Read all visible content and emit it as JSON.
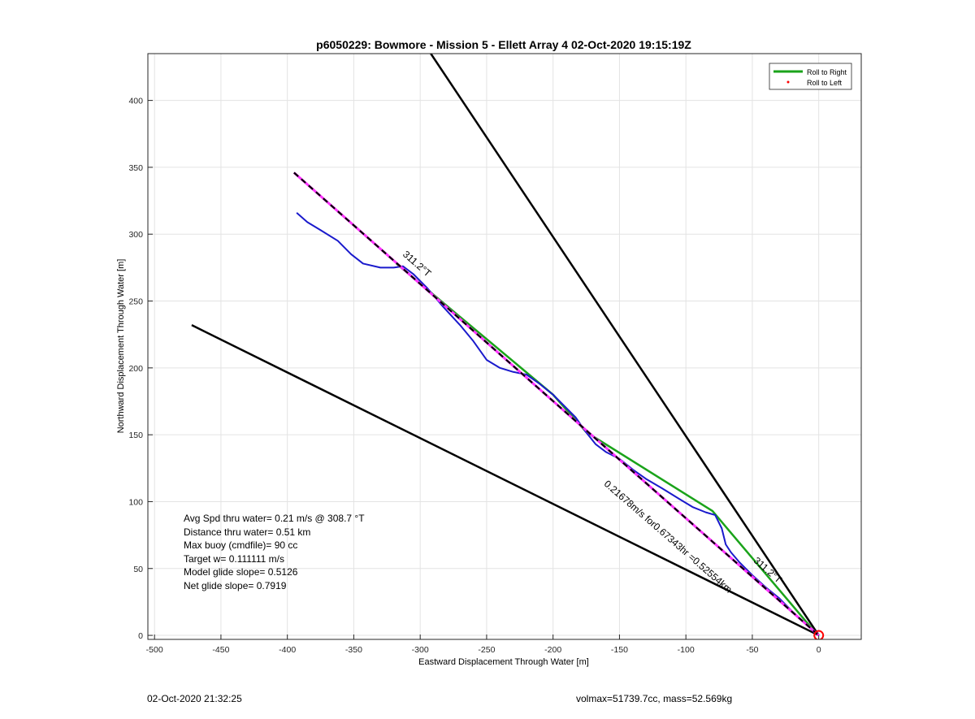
{
  "chart_data": {
    "type": "line",
    "title": "p6050229: Bowmore - Mission 5 - Ellett Array 4 02-Oct-2020 19:15:19Z",
    "xlabel": "Eastward Displacement Through Water [m]",
    "ylabel": "Northward Displacement Through Water [m]",
    "xlim": [
      -505,
      32
    ],
    "ylim": [
      -3,
      435
    ],
    "xticks": [
      -500,
      -450,
      -400,
      -350,
      -300,
      -250,
      -200,
      -150,
      -100,
      -50,
      0
    ],
    "yticks": [
      0,
      50,
      100,
      150,
      200,
      250,
      300,
      350,
      400
    ],
    "grid": true,
    "legend": {
      "placement": "top-right",
      "entries": [
        {
          "label": "Roll to Right",
          "color": "#1aa31a",
          "style": "line"
        },
        {
          "label": "Roll to Left",
          "color": "#ff0000",
          "style": "dot"
        }
      ]
    },
    "series": [
      {
        "role": "wedge-upper",
        "color": "#000000",
        "x": [
          0,
          -292
        ],
        "y": [
          0,
          435
        ]
      },
      {
        "role": "wedge-lower",
        "color": "#000000",
        "x": [
          0,
          -472
        ],
        "y": [
          0,
          232
        ]
      },
      {
        "role": "roll-right",
        "color": "#1aa31a",
        "x": [
          -318,
          -200,
          -175,
          -80,
          -5
        ],
        "y": [
          278,
          180,
          152,
          93,
          5
        ]
      },
      {
        "role": "track",
        "color": "#1a1acc",
        "x": [
          -393,
          -385,
          -375,
          -362,
          -352,
          -343,
          -330,
          -320,
          -313,
          -305,
          -295,
          -283,
          -270,
          -260,
          -250,
          -240,
          -230,
          -220,
          -210,
          -200,
          -190,
          -183,
          -176,
          -168,
          -160,
          -150,
          -140,
          -130,
          -118,
          -105,
          -95,
          -85,
          -78,
          -73,
          -70,
          -66,
          -60,
          -50,
          -40,
          -30,
          -20,
          -10,
          -3
        ],
        "y": [
          316,
          309,
          303,
          295,
          285,
          278,
          275,
          275,
          276,
          270,
          260,
          246,
          232,
          220,
          206,
          200,
          197,
          195,
          188,
          180,
          170,
          163,
          153,
          143,
          137,
          132,
          124,
          117,
          110,
          102,
          96,
          92,
          90,
          80,
          68,
          62,
          55,
          45,
          36,
          28,
          18,
          9,
          2
        ]
      },
      {
        "role": "heading-line",
        "color": "#000000",
        "dash": "pink-black",
        "pinkColor": "#ff33ff",
        "x": [
          -395,
          0
        ],
        "y": [
          346,
          0
        ]
      }
    ],
    "annotations": [
      {
        "text": "311.2°T",
        "x": -304,
        "y": 276,
        "angle": 41
      },
      {
        "text": "311.2°T",
        "x": -40,
        "y": 47,
        "angle": 41
      },
      {
        "text": "0.21678m/s for0.67343hr =0.52554km",
        "x": -115,
        "y": 72,
        "angle": 41
      }
    ],
    "origin_marker": {
      "x": 0,
      "y": 0,
      "color": "#ff0000"
    },
    "stats": [
      "Avg Spd thru water=  0.21 m/s @ 308.7 °T",
      "Distance thru water=  0.51 km",
      "Max buoy (cmdfile)= 90 cc",
      "Target w= 0.111111 m/s",
      "Model glide slope= 0.5126",
      "Net glide slope= 0.7919"
    ]
  },
  "footer": {
    "timestamp": "02-Oct-2020 21:32:25",
    "params": "volmax=51739.7cc, mass=52.569kg"
  }
}
